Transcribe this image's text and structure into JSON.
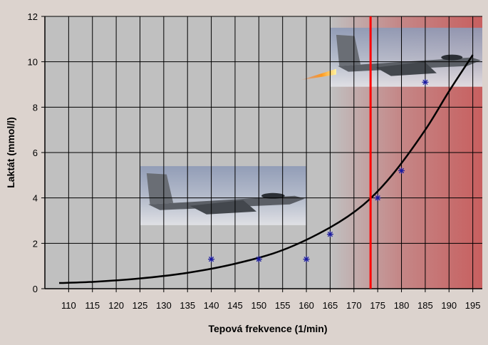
{
  "chart_data": {
    "type": "scatter",
    "title": "",
    "xlabel": "Tepová frekvence (1/min)",
    "ylabel": "Laktát (mmol/l)",
    "xlim": [
      105,
      197
    ],
    "ylim": [
      0,
      12
    ],
    "x_ticks": [
      110,
      115,
      120,
      125,
      130,
      135,
      140,
      145,
      150,
      155,
      160,
      165,
      170,
      175,
      180,
      185,
      190,
      195
    ],
    "y_ticks": [
      0,
      2,
      4,
      6,
      8,
      10,
      12
    ],
    "grid": true,
    "legend": "none",
    "series": [
      {
        "marker": "asterisk",
        "color": "#1a1aa0",
        "points": [
          {
            "x": 140,
            "y": 1.3
          },
          {
            "x": 150,
            "y": 1.3
          },
          {
            "x": 160,
            "y": 1.3
          },
          {
            "x": 165,
            "y": 2.4
          },
          {
            "x": 175,
            "y": 4.0
          },
          {
            "x": 180,
            "y": 5.2
          },
          {
            "x": 185,
            "y": 9.1
          }
        ]
      }
    ],
    "trendline": {
      "type": "exponential",
      "color": "#000000",
      "x_range": [
        108,
        195
      ],
      "points": [
        {
          "x": 108,
          "y": 0.25
        },
        {
          "x": 115,
          "y": 0.3
        },
        {
          "x": 125,
          "y": 0.45
        },
        {
          "x": 135,
          "y": 0.7
        },
        {
          "x": 145,
          "y": 1.1
        },
        {
          "x": 155,
          "y": 1.7
        },
        {
          "x": 165,
          "y": 2.7
        },
        {
          "x": 172,
          "y": 3.7
        },
        {
          "x": 178,
          "y": 5.0
        },
        {
          "x": 185,
          "y": 7.0
        },
        {
          "x": 190,
          "y": 8.7
        },
        {
          "x": 195,
          "y": 10.3
        }
      ]
    },
    "threshold_line": {
      "x": 173.5,
      "color": "#ff0000"
    },
    "shaded_zone": {
      "x_from": 165,
      "x_to": 197,
      "color": "#c85a5a"
    },
    "illustrations": [
      {
        "icon": "fighter-jet-icon",
        "x_from": 125,
        "x_to": 160,
        "y_from": 2.8,
        "y_to": 5.4
      },
      {
        "icon": "fighter-jet-afterburner-icon",
        "x_from": 165,
        "x_to": 197,
        "y_from": 8.9,
        "y_to": 11.5
      }
    ],
    "colors": {
      "background": "#dcd3ce",
      "plot": "#c0c0c0",
      "grid": "#000000"
    }
  }
}
